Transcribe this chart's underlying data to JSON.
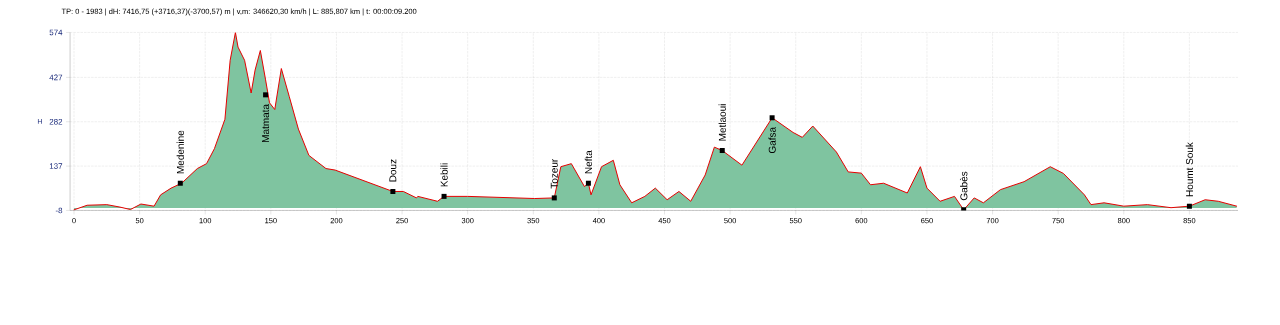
{
  "chart_data": {
    "type": "area",
    "title": "TP: 0 - 1983 | dH: 7416,75  (+3716,37)(-3700,57) m | v,m: 346620,30 km/h | L: 885,807 km | t: 00:00:09.200",
    "ylabel": "H",
    "x": [
      0,
      10,
      25,
      35,
      43,
      51,
      61,
      66,
      74,
      82,
      94,
      101,
      107,
      115,
      119,
      123,
      125,
      130,
      135,
      138,
      142,
      146,
      149,
      153,
      158,
      164,
      171,
      179,
      192,
      199,
      243,
      251,
      261,
      262,
      277,
      282,
      300,
      351,
      366,
      371,
      379,
      389,
      392,
      394,
      402,
      411,
      416,
      425,
      435,
      443,
      452,
      461,
      470,
      481,
      488,
      494,
      509,
      532,
      548,
      555,
      563,
      581,
      590,
      600,
      607,
      617,
      635,
      645,
      650,
      660,
      671,
      678,
      686,
      693,
      706,
      724,
      744,
      754,
      770,
      775,
      785,
      800,
      818,
      836,
      850,
      862,
      872,
      886
    ],
    "series": [
      {
        "color": "#7fc4a0",
        "values": [
          -6,
          9,
          11,
          3,
          -5,
          13,
          6,
          43,
          65,
          81,
          129,
          145,
          194,
          290,
          483,
          574,
          526,
          483,
          376,
          451,
          515,
          419,
          344,
          322,
          456,
          365,
          258,
          172,
          129,
          124,
          54,
          54,
          33,
          38,
          22,
          38,
          38,
          31,
          33,
          135,
          145,
          70,
          81,
          43,
          135,
          156,
          76,
          17,
          38,
          65,
          27,
          54,
          22,
          108,
          199,
          188,
          140,
          295,
          247,
          231,
          268,
          183,
          118,
          114,
          76,
          81,
          49,
          135,
          65,
          22,
          38,
          -6,
          33,
          17,
          60,
          86,
          135,
          113,
          43,
          11,
          17,
          6,
          11,
          1,
          6,
          27,
          22,
          6
        ]
      }
    ],
    "xlim": [
      -3,
      887
    ],
    "ylim": [
      -8,
      574
    ],
    "xticks": [
      0,
      50,
      100,
      150,
      200,
      250,
      300,
      350,
      400,
      450,
      500,
      550,
      600,
      650,
      700,
      750,
      800,
      850
    ],
    "yticks": [
      -8,
      137,
      282,
      427,
      574
    ],
    "grid": true,
    "annotations": [
      {
        "text": "Medenine",
        "x": 81,
        "y": 81
      },
      {
        "text": "Matmata",
        "x": 146,
        "y": 370
      },
      {
        "text": "Douz",
        "x": 243,
        "y": 54
      },
      {
        "text": "Kebili",
        "x": 282,
        "y": 38
      },
      {
        "text": "Tozeur",
        "x": 366,
        "y": 33
      },
      {
        "text": "Nefta",
        "x": 392,
        "y": 81
      },
      {
        "text": "Metlaoui",
        "x": 494,
        "y": 188
      },
      {
        "text": "Gafsa",
        "x": 532,
        "y": 295
      },
      {
        "text": "Gabès",
        "x": 678,
        "y": -6
      },
      {
        "text": "Houmt Souk",
        "x": 850,
        "y": 6
      }
    ]
  }
}
